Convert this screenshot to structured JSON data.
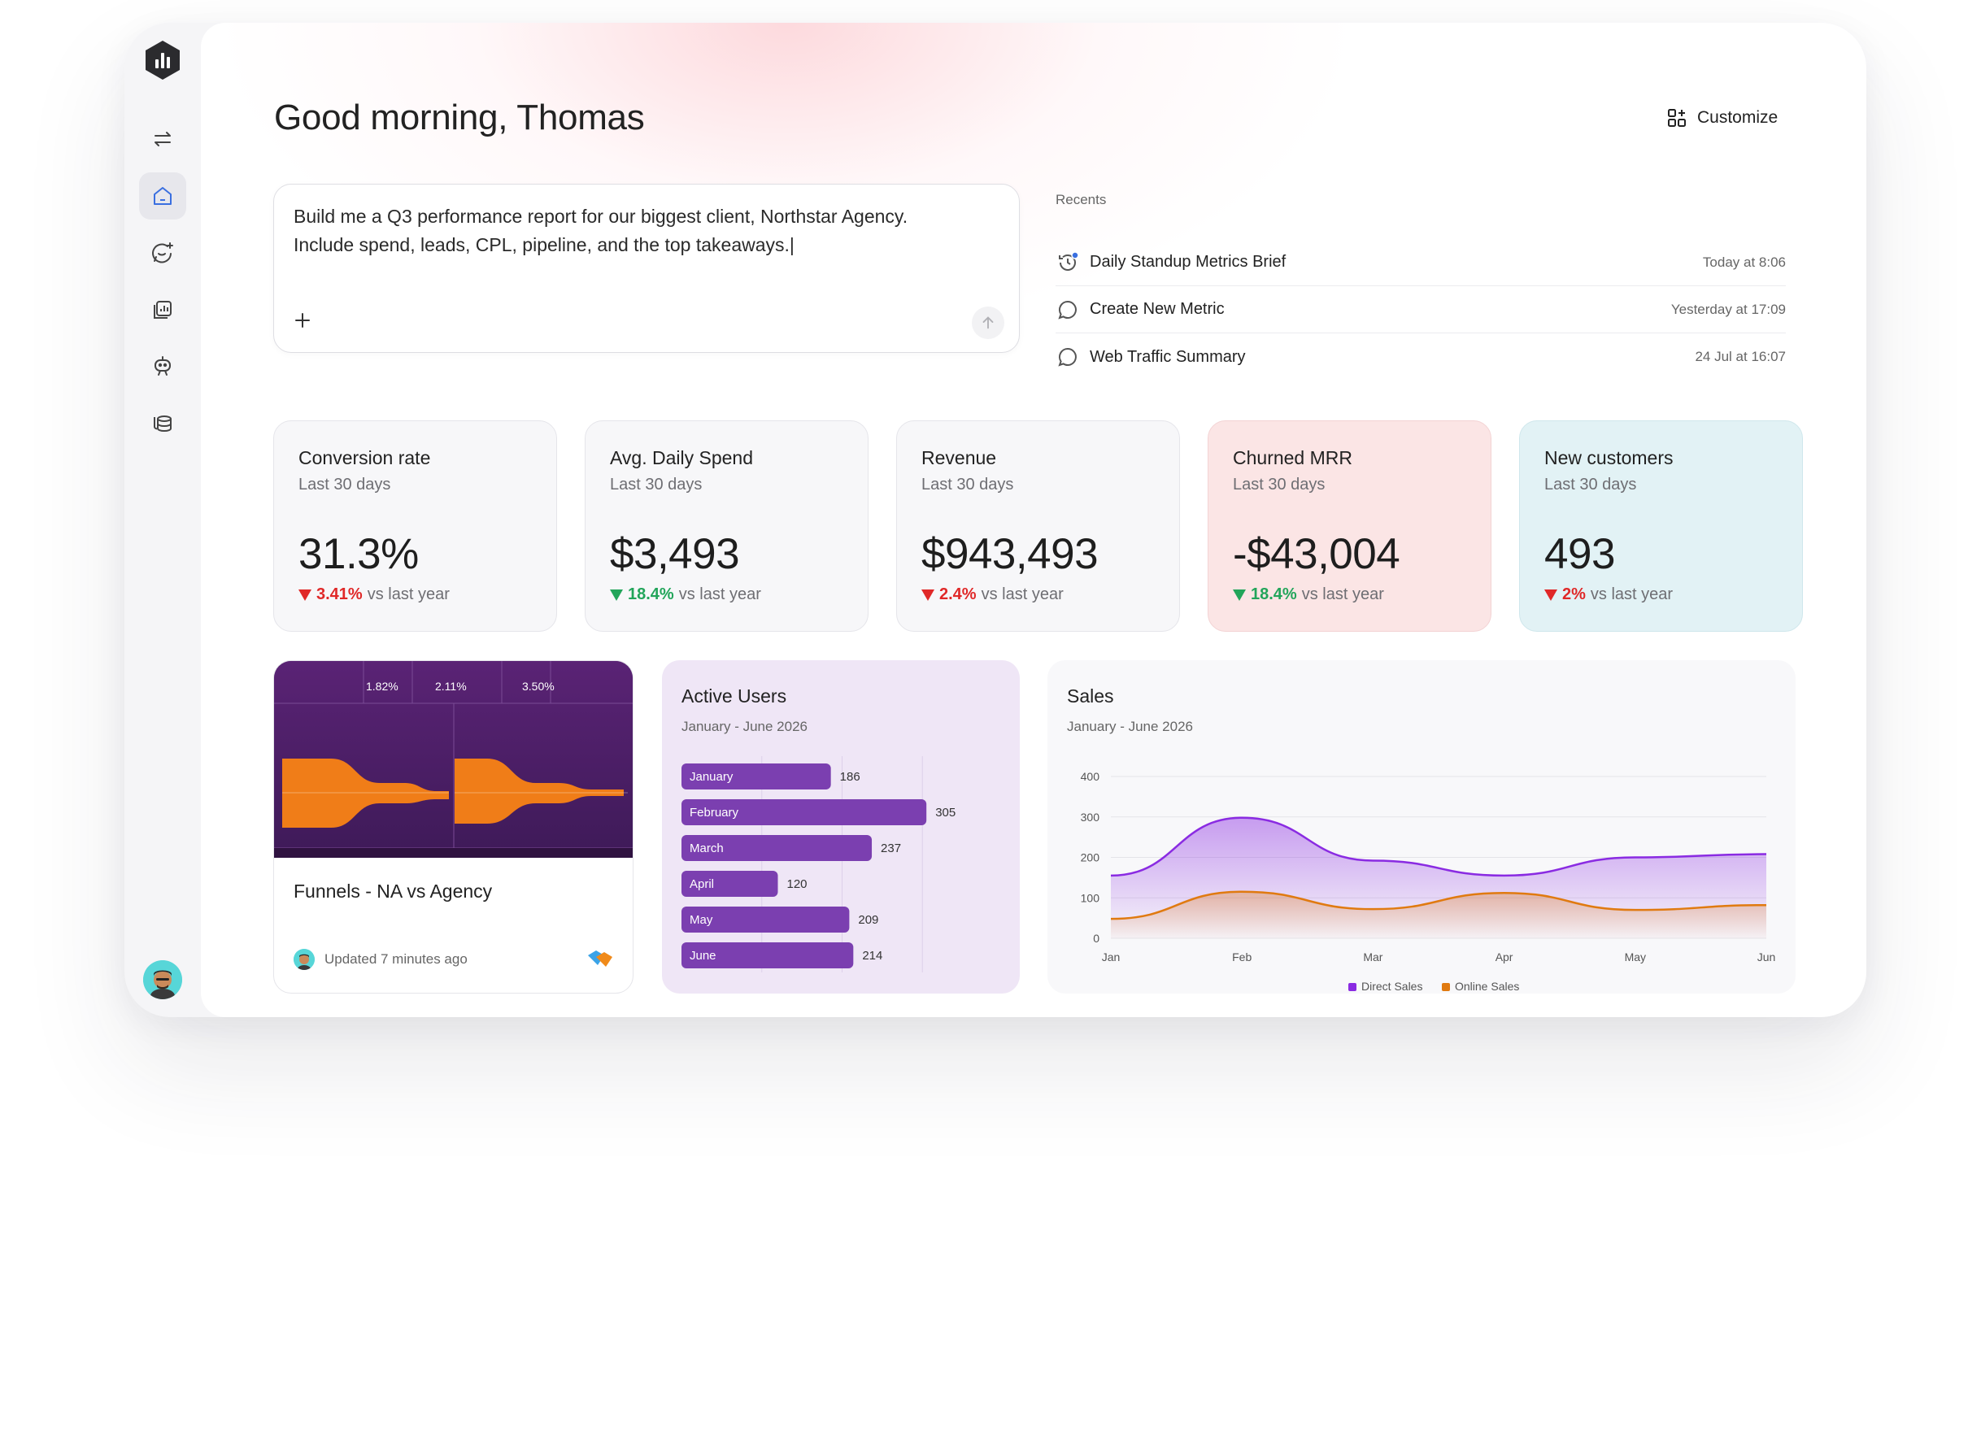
{
  "greeting": "Good morning, Thomas",
  "customize_label": "Customize",
  "prompt": {
    "text": "Build me a Q3 performance report for our biggest client, Northstar Agency.\nInclude spend, leads, CPL, pipeline, and the top takeaways.|"
  },
  "recents": {
    "title": "Recents",
    "items": [
      {
        "label": "Daily Standup Metrics Brief",
        "time": "Today at 8:06"
      },
      {
        "label": "Create New Metric",
        "time": "Yesterday at 17:09"
      },
      {
        "label": "Web Traffic Summary",
        "time": "24 Jul at 16:07"
      }
    ]
  },
  "kpis": [
    {
      "title": "Conversion rate",
      "period": "Last 30 days",
      "value": "31.3%",
      "change": "3.41%",
      "direction": "down",
      "color": "red",
      "suffix": "vs last year"
    },
    {
      "title": "Avg. Daily Spend",
      "period": "Last 30 days",
      "value": "$3,493",
      "change": "18.4%",
      "direction": "down",
      "color": "green",
      "suffix": "vs last year"
    },
    {
      "title": "Revenue",
      "period": "Last 30 days",
      "value": "$943,493",
      "change": "2.4%",
      "direction": "down",
      "color": "red",
      "suffix": "vs last year"
    },
    {
      "title": "Churned MRR",
      "period": "Last 30 days",
      "value": "-$43,004",
      "change": "18.4%",
      "direction": "down",
      "color": "green",
      "suffix": "vs last year"
    },
    {
      "title": "New customers",
      "period": "Last 30 days",
      "value": "493",
      "change": "2%",
      "direction": "down",
      "color": "red",
      "suffix": "vs last year"
    }
  ],
  "funnel_card": {
    "title": "Funnels - NA vs Agency",
    "updated": "Updated 7 minutes ago",
    "thumb_stats": [
      "1.82%",
      "2.11%",
      "3.50%"
    ]
  },
  "chart_data": [
    {
      "type": "bar",
      "orientation": "horizontal",
      "title": "Active Users",
      "subtitle": "January - June 2026",
      "categories": [
        "January",
        "February",
        "March",
        "April",
        "May",
        "June"
      ],
      "values": [
        186,
        305,
        237,
        120,
        209,
        214
      ],
      "xlim": [
        0,
        400
      ],
      "color": "#7b3fb0"
    },
    {
      "type": "area",
      "title": "Sales",
      "subtitle": "January - June 2026",
      "x": [
        "Jan",
        "Feb",
        "Mar",
        "Apr",
        "May",
        "Jun"
      ],
      "ylim": [
        0,
        400
      ],
      "yticks": [
        0,
        100,
        200,
        300,
        400
      ],
      "series": [
        {
          "name": "Direct Sales",
          "values": [
            155,
            298,
            192,
            155,
            200,
            208
          ],
          "color": "#8a2be2"
        },
        {
          "name": "Online Sales",
          "values": [
            48,
            115,
            72,
            112,
            70,
            82
          ],
          "color": "#e07a10"
        }
      ],
      "legend": "bottom",
      "grid": true
    }
  ],
  "colors": {
    "accent_purple": "#7b3fb0",
    "negative": "#e02828",
    "positive": "#22a55a"
  }
}
